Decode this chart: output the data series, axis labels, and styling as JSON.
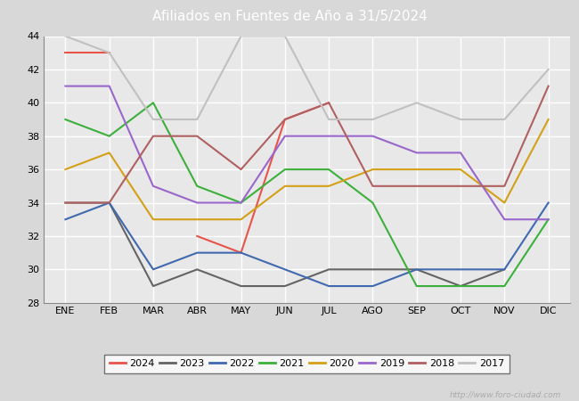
{
  "title": "Afiliados en Fuentes de Año a 31/5/2024",
  "header_bg": "#5b8dd9",
  "months": [
    "ENE",
    "FEB",
    "MAR",
    "ABR",
    "MAY",
    "JUN",
    "JUL",
    "AGO",
    "SEP",
    "OCT",
    "NOV",
    "DIC"
  ],
  "ylim": [
    28,
    44
  ],
  "yticks": [
    28,
    30,
    32,
    34,
    36,
    38,
    40,
    42,
    44
  ],
  "series": {
    "2024": {
      "color": "#e8534a",
      "data": [
        43,
        43,
        null,
        32,
        31,
        39,
        40,
        null,
        null,
        null,
        null,
        null
      ]
    },
    "2023": {
      "color": "#646464",
      "data": [
        34,
        34,
        29,
        30,
        29,
        29,
        30,
        30,
        30,
        29,
        30,
        null
      ]
    },
    "2022": {
      "color": "#4169b0",
      "data": [
        33,
        34,
        30,
        31,
        31,
        30,
        29,
        29,
        30,
        30,
        30,
        34
      ]
    },
    "2021": {
      "color": "#3cb03c",
      "data": [
        39,
        38,
        40,
        35,
        34,
        36,
        36,
        34,
        29,
        29,
        29,
        33
      ]
    },
    "2020": {
      "color": "#d4a017",
      "data": [
        36,
        37,
        33,
        33,
        33,
        35,
        35,
        36,
        36,
        36,
        34,
        39
      ]
    },
    "2019": {
      "color": "#9966cc",
      "data": [
        41,
        41,
        35,
        34,
        34,
        38,
        38,
        38,
        37,
        37,
        33,
        33
      ]
    },
    "2018": {
      "color": "#b06060",
      "data": [
        34,
        34,
        38,
        38,
        36,
        39,
        40,
        35,
        35,
        35,
        35,
        41
      ]
    },
    "2017": {
      "color": "#c0c0c0",
      "data": [
        44,
        43,
        39,
        39,
        44,
        44,
        39,
        39,
        40,
        39,
        39,
        42
      ]
    }
  },
  "legend_order": [
    "2024",
    "2023",
    "2022",
    "2021",
    "2020",
    "2019",
    "2018",
    "2017"
  ],
  "watermark": "http://www.foro-ciudad.com",
  "outer_bg": "#d8d8d8",
  "plot_bg": "#e8e8e8",
  "grid_color": "#ffffff",
  "line_width": 1.5
}
